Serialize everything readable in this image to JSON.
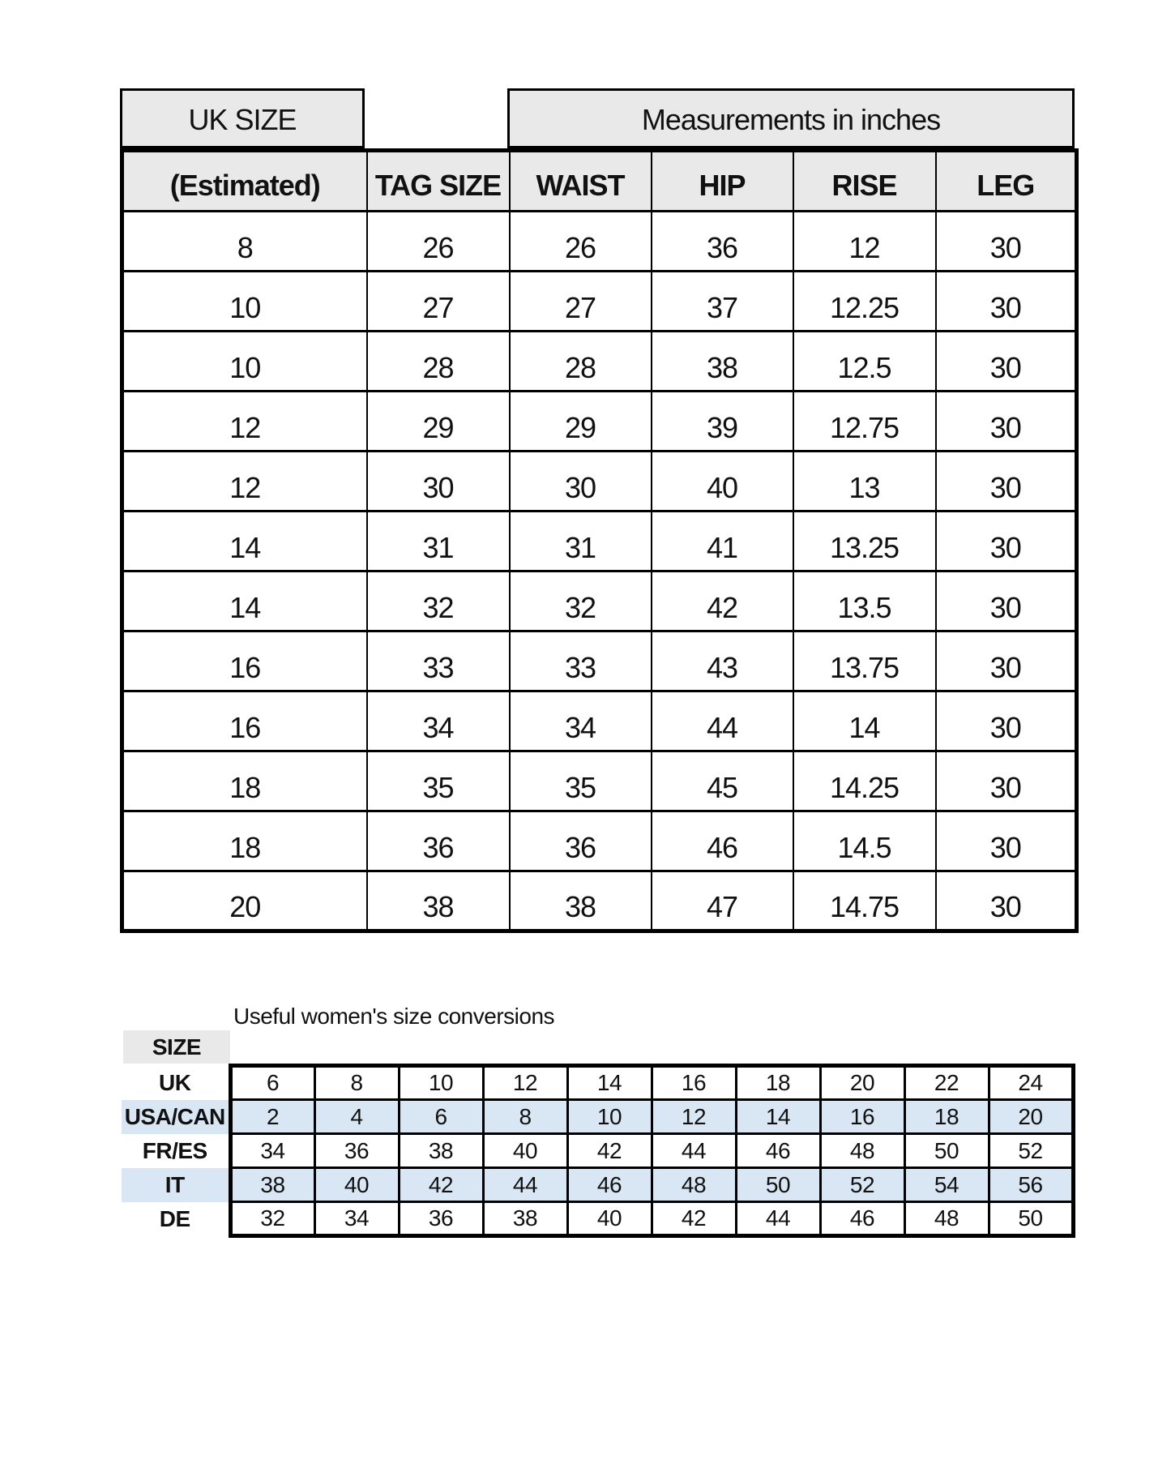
{
  "main_table": {
    "uk_size_header": "UK SIZE",
    "measurements_header": "Measurements in inches",
    "columns": [
      "(Estimated)",
      "TAG SIZE",
      "WAIST",
      "HIP",
      "RISE",
      "LEG"
    ],
    "rows": [
      [
        "8",
        "26",
        "26",
        "36",
        "12",
        "30"
      ],
      [
        "10",
        "27",
        "27",
        "37",
        "12.25",
        "30"
      ],
      [
        "10",
        "28",
        "28",
        "38",
        "12.5",
        "30"
      ],
      [
        "12",
        "29",
        "29",
        "39",
        "12.75",
        "30"
      ],
      [
        "12",
        "30",
        "30",
        "40",
        "13",
        "30"
      ],
      [
        "14",
        "31",
        "31",
        "41",
        "13.25",
        "30"
      ],
      [
        "14",
        "32",
        "32",
        "42",
        "13.5",
        "30"
      ],
      [
        "16",
        "33",
        "33",
        "43",
        "13.75",
        "30"
      ],
      [
        "16",
        "34",
        "34",
        "44",
        "14",
        "30"
      ],
      [
        "18",
        "35",
        "35",
        "45",
        "14.25",
        "30"
      ],
      [
        "18",
        "36",
        "36",
        "46",
        "14.5",
        "30"
      ],
      [
        "20",
        "38",
        "38",
        "47",
        "14.75",
        "30"
      ]
    ]
  },
  "conversion": {
    "title": "Useful women's size conversions",
    "size_label": "SIZE",
    "rows": [
      {
        "label": "UK",
        "highlight": false,
        "values": [
          "6",
          "8",
          "10",
          "12",
          "14",
          "16",
          "18",
          "20",
          "22",
          "24"
        ]
      },
      {
        "label": "USA/CAN",
        "highlight": true,
        "values": [
          "2",
          "4",
          "6",
          "8",
          "10",
          "12",
          "14",
          "16",
          "18",
          "20"
        ]
      },
      {
        "label": "FR/ES",
        "highlight": false,
        "values": [
          "34",
          "36",
          "38",
          "40",
          "42",
          "44",
          "46",
          "48",
          "50",
          "52"
        ]
      },
      {
        "label": "IT",
        "highlight": true,
        "values": [
          "38",
          "40",
          "42",
          "44",
          "46",
          "48",
          "50",
          "52",
          "54",
          "56"
        ]
      },
      {
        "label": "DE",
        "highlight": false,
        "values": [
          "32",
          "34",
          "36",
          "38",
          "40",
          "42",
          "44",
          "46",
          "48",
          "50"
        ]
      }
    ]
  },
  "colors": {
    "header_bg": "#e9e9e9",
    "highlight_bg": "#d9e7f5",
    "border": "#000000"
  }
}
